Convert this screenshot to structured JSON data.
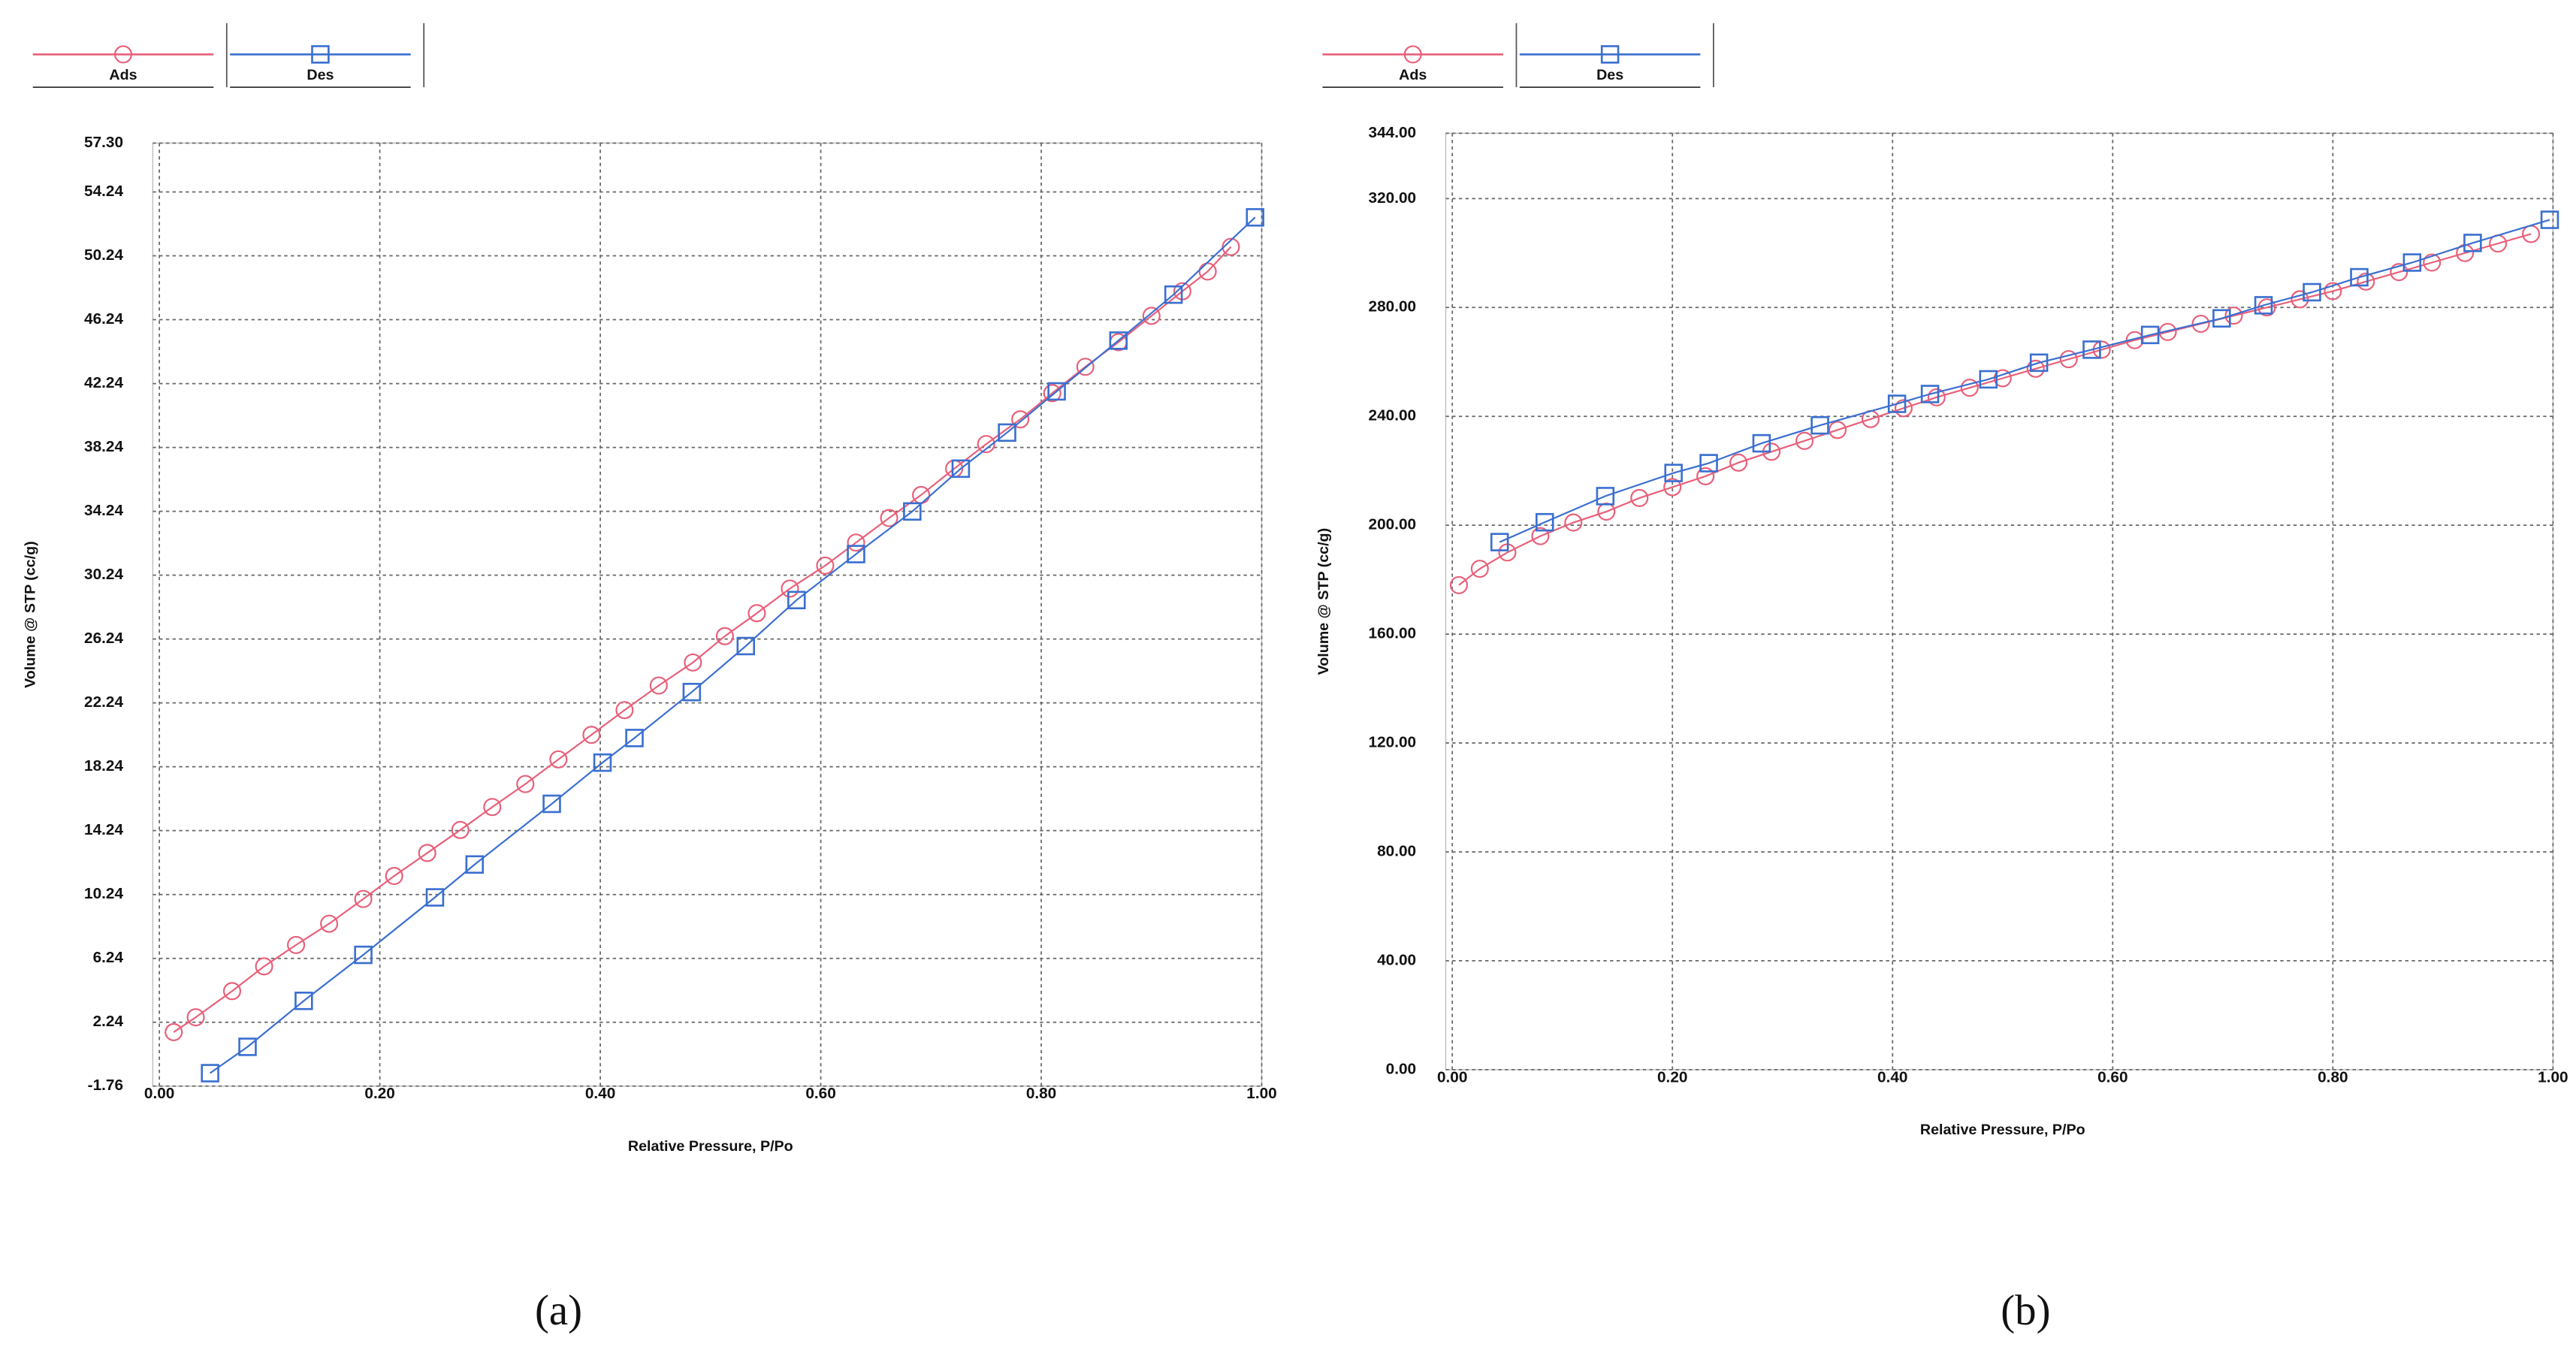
{
  "chart_data": [
    {
      "type": "line",
      "caption": "(a)",
      "xlabel": "Relative Pressure, P/Po",
      "ylabel": "Volume @ STP (cc/g)",
      "xlim": [
        0,
        1
      ],
      "ylim": [
        -1.76,
        57.3
      ],
      "grid": true,
      "xticks": [
        {
          "value": 0,
          "label": "0.00"
        },
        {
          "value": 0.2,
          "label": "0.20"
        },
        {
          "value": 0.4,
          "label": "0.40"
        },
        {
          "value": 0.6,
          "label": "0.60"
        },
        {
          "value": 0.8,
          "label": "0.80"
        },
        {
          "value": 1,
          "label": "1.00"
        }
      ],
      "yticks": [
        -1.76,
        2.24,
        6.24,
        10.24,
        14.24,
        18.24,
        22.24,
        26.24,
        30.24,
        34.24,
        38.24,
        42.24,
        46.24,
        50.24,
        54.24,
        {
          "value": 57.3,
          "label": "57.30"
        }
      ],
      "series": [
        {
          "name": "Ads",
          "color": "#e8607a",
          "marker": "circle",
          "x": [
            0.013,
            0.033,
            0.066,
            0.095,
            0.124,
            0.154,
            0.185,
            0.213,
            0.243,
            0.273,
            0.302,
            0.332,
            0.362,
            0.392,
            0.422,
            0.453,
            0.484,
            0.513,
            0.542,
            0.572,
            0.604,
            0.632,
            0.662,
            0.691,
            0.721,
            0.75,
            0.781,
            0.81,
            0.84,
            0.87,
            0.9,
            0.928,
            0.951,
            0.972
          ],
          "values": [
            1.62,
            2.55,
            4.19,
            5.74,
            7.08,
            8.41,
            9.96,
            11.4,
            12.84,
            14.28,
            15.72,
            17.16,
            18.7,
            20.24,
            21.79,
            23.33,
            24.77,
            26.42,
            27.86,
            29.4,
            30.84,
            32.28,
            33.82,
            35.26,
            36.91,
            38.45,
            40.0,
            41.64,
            43.29,
            44.83,
            46.48,
            48.02,
            49.26,
            50.8
          ]
        },
        {
          "name": "Des",
          "color": "#3a6fd0",
          "marker": "square",
          "x": [
            0.046,
            0.08,
            0.131,
            0.185,
            0.25,
            0.286,
            0.356,
            0.402,
            0.431,
            0.483,
            0.532,
            0.578,
            0.632,
            0.683,
            0.727,
            0.769,
            0.814,
            0.87,
            0.92,
            0.994
          ],
          "values": [
            -0.95,
            0.7,
            3.58,
            6.46,
            10.06,
            12.12,
            15.92,
            18.5,
            20.04,
            22.92,
            25.8,
            28.68,
            31.56,
            34.23,
            36.91,
            39.17,
            41.75,
            44.93,
            47.81,
            52.65
          ]
        }
      ]
    },
    {
      "type": "line",
      "caption": "(b)",
      "xlabel": "Relative Pressure, P/Po",
      "ylabel": "Volume @ STP (cc/g)",
      "xlim": [
        0,
        1
      ],
      "ylim": [
        0,
        344
      ],
      "grid": true,
      "xticks": [
        {
          "value": 0,
          "label": "0.00"
        },
        {
          "value": 0.2,
          "label": "0.20"
        },
        {
          "value": 0.4,
          "label": "0.40"
        },
        {
          "value": 0.6,
          "label": "0.60"
        },
        {
          "value": 0.8,
          "label": "0.80"
        },
        {
          "value": 1,
          "label": "1.00"
        }
      ],
      "yticks": [
        {
          "value": 0,
          "label": "0.00"
        },
        {
          "value": 40,
          "label": "40.00"
        },
        {
          "value": 80,
          "label": "80.00"
        },
        {
          "value": 120,
          "label": "120.00"
        },
        {
          "value": 160,
          "label": "160.00"
        },
        {
          "value": 200,
          "label": "200.00"
        },
        {
          "value": 240,
          "label": "240.00"
        },
        {
          "value": 280,
          "label": "280.00"
        },
        {
          "value": 320,
          "label": "320.00"
        },
        {
          "value": 344,
          "label": "344.00"
        }
      ],
      "series": [
        {
          "name": "Ads",
          "color": "#e8607a",
          "marker": "circle",
          "x": [
            0.006,
            0.025,
            0.05,
            0.08,
            0.11,
            0.14,
            0.17,
            0.2,
            0.23,
            0.26,
            0.29,
            0.32,
            0.35,
            0.38,
            0.41,
            0.44,
            0.47,
            0.5,
            0.53,
            0.56,
            0.59,
            0.62,
            0.65,
            0.68,
            0.71,
            0.74,
            0.77,
            0.8,
            0.83,
            0.86,
            0.89,
            0.92,
            0.95,
            0.98
          ],
          "values": [
            178,
            184,
            190,
            196,
            201,
            205,
            210,
            214,
            218,
            223,
            227,
            231,
            235,
            239,
            243,
            247,
            250.5,
            254,
            257.5,
            261,
            264.5,
            268,
            271,
            274,
            277,
            280,
            283,
            286,
            289.5,
            293,
            296.5,
            300,
            303.5,
            307
          ]
        },
        {
          "name": "Des",
          "color": "#3a6fd0",
          "marker": "square",
          "x": [
            0.043,
            0.084,
            0.139,
            0.201,
            0.233,
            0.281,
            0.334,
            0.404,
            0.434,
            0.487,
            0.533,
            0.581,
            0.634,
            0.699,
            0.737,
            0.781,
            0.824,
            0.872,
            0.927,
            0.997
          ],
          "values": [
            193.8,
            201.1,
            210.7,
            219.2,
            222.8,
            230.1,
            236.7,
            244.6,
            248.2,
            253.6,
            259.7,
            264.5,
            269.9,
            276.0,
            280.8,
            285.6,
            291.1,
            296.5,
            303.7,
            312.2
          ]
        }
      ]
    }
  ]
}
